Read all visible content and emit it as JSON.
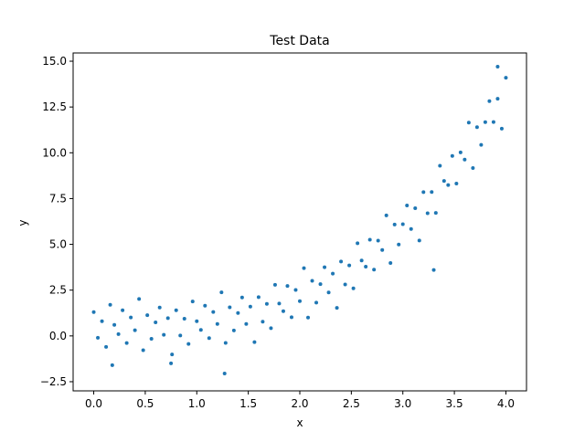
{
  "chart_data": {
    "type": "scatter",
    "title": "Test Data",
    "xlabel": "x",
    "ylabel": "y",
    "color": "#1f77b4",
    "grid": false,
    "xlim": [
      -0.2,
      4.2
    ],
    "ylim": [
      -3.0,
      15.45
    ],
    "xticks": [
      {
        "value": 0,
        "label": "0.0"
      },
      0.5,
      {
        "value": 1,
        "label": "1.0"
      },
      1.5,
      {
        "value": 2,
        "label": "2.0"
      },
      2.5,
      {
        "value": 3,
        "label": "3.0"
      },
      3.5,
      {
        "value": 4,
        "label": "4.0"
      }
    ],
    "yticks": [
      {
        "value": -2.5,
        "label": "−2.5"
      },
      {
        "value": 0,
        "label": "0.0"
      },
      2.5,
      {
        "value": 5,
        "label": "5.0"
      },
      7.5,
      {
        "value": 10,
        "label": "10.0"
      },
      12.5,
      {
        "value": 15,
        "label": "15.0"
      }
    ],
    "x": [
      0,
      0.04,
      0.08,
      0.12,
      0.16,
      0.2,
      0.24,
      0.28,
      0.32,
      0.36,
      0.4,
      0.44,
      0.48,
      0.52,
      0.56,
      0.6,
      0.64,
      0.68,
      0.72,
      0.76,
      0.8,
      0.84,
      0.88,
      0.92,
      0.96,
      1.0,
      1.04,
      1.08,
      1.12,
      1.16,
      1.2,
      1.24,
      1.28,
      1.32,
      1.36,
      1.4,
      1.44,
      1.48,
      1.52,
      1.56,
      1.6,
      1.64,
      1.68,
      1.72,
      1.76,
      1.8,
      1.84,
      1.88,
      1.92,
      1.96,
      2.0,
      2.04,
      2.08,
      2.12,
      2.16,
      2.2,
      2.24,
      2.28,
      2.32,
      2.36,
      2.4,
      2.44,
      2.48,
      2.52,
      2.56,
      2.6,
      2.64,
      2.68,
      2.72,
      2.76,
      2.8,
      2.84,
      2.88,
      2.92,
      2.96,
      3.0,
      3.04,
      3.08,
      3.12,
      3.16,
      3.2,
      3.24,
      3.28,
      3.32,
      3.36,
      3.4,
      3.44,
      3.48,
      3.52,
      3.56,
      3.6,
      3.64,
      3.68,
      3.72,
      3.76,
      3.8,
      3.84,
      3.88,
      3.92,
      3.96,
      4.0,
      3.92,
      1.27,
      3.3,
      0.18,
      0.75
    ],
    "values": [
      1.3,
      -0.1,
      0.8,
      -0.6,
      1.7,
      0.6,
      0.1,
      1.4,
      -0.39,
      1.01,
      0.31,
      2.02,
      -0.78,
      1.13,
      -0.16,
      0.74,
      1.55,
      0.06,
      0.97,
      -1.01,
      1.4,
      0.02,
      0.94,
      -0.44,
      1.88,
      0.8,
      0.33,
      1.65,
      -0.12,
      1.31,
      0.65,
      2.38,
      -0.38,
      1.56,
      0.3,
      1.25,
      2.1,
      0.65,
      1.6,
      -0.34,
      2.12,
      0.78,
      1.75,
      0.42,
      2.79,
      1.77,
      1.35,
      2.73,
      1.02,
      2.51,
      1.9,
      3.7,
      1.0,
      3.01,
      1.82,
      2.83,
      3.75,
      2.37,
      3.4,
      1.53,
      4.06,
      2.81,
      3.85,
      2.6,
      5.06,
      4.12,
      3.78,
      5.25,
      3.62,
      5.2,
      4.69,
      6.58,
      3.98,
      6.08,
      4.99,
      6.1,
      7.12,
      5.84,
      6.97,
      5.21,
      7.85,
      6.7,
      7.86,
      6.72,
      9.29,
      8.46,
      8.24,
      9.83,
      8.32,
      10.02,
      9.63,
      11.65,
      9.17,
      11.4,
      10.43,
      11.67,
      12.82,
      11.68,
      12.95,
      11.32,
      14.1,
      14.7,
      -2.05,
      3.6,
      -1.6,
      -1.5
    ]
  }
}
